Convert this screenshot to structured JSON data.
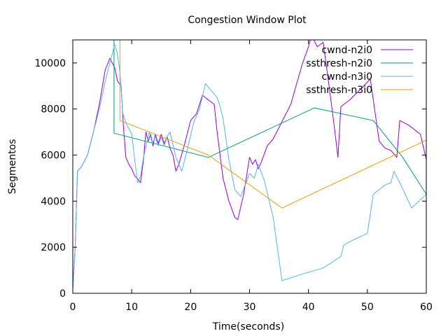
{
  "chart_data": {
    "type": "line",
    "title": "Congestion Window Plot",
    "xlabel": "Time(seconds)",
    "ylabel": "Segmentos",
    "xlim": [
      0,
      60
    ],
    "ylim": [
      0,
      11000
    ],
    "xticks": [
      0,
      10,
      20,
      30,
      40,
      50,
      60
    ],
    "yticks": [
      0,
      2000,
      4000,
      6000,
      8000,
      10000
    ],
    "grid": false,
    "legend_position": "top-right",
    "series": [
      {
        "name": "cwnd-n2i0",
        "color": "#9400d3",
        "points": [
          [
            0,
            200
          ],
          [
            0.4,
            2000
          ],
          [
            0.8,
            5300
          ],
          [
            1.5,
            5500
          ],
          [
            2.5,
            6000
          ],
          [
            3.5,
            7000
          ],
          [
            4.5,
            8200
          ],
          [
            5.5,
            9700
          ],
          [
            6.3,
            10200
          ],
          [
            7.1,
            9800
          ],
          [
            7.6,
            9200
          ],
          [
            8.2,
            9000
          ],
          [
            8.6,
            7200
          ],
          [
            9.0,
            5900
          ],
          [
            9.5,
            5600
          ],
          [
            10.0,
            5400
          ],
          [
            10.5,
            5100
          ],
          [
            11.2,
            4900
          ],
          [
            11.5,
            4800
          ],
          [
            12.0,
            5800
          ],
          [
            12.4,
            7000
          ],
          [
            12.8,
            6600
          ],
          [
            13.2,
            6900
          ],
          [
            13.6,
            6400
          ],
          [
            14.0,
            6900
          ],
          [
            14.5,
            6500
          ],
          [
            15.0,
            6900
          ],
          [
            15.5,
            6500
          ],
          [
            16.0,
            6800
          ],
          [
            16.5,
            6300
          ],
          [
            17.0,
            6000
          ],
          [
            17.5,
            5300
          ],
          [
            18.0,
            5600
          ],
          [
            19.0,
            6500
          ],
          [
            20.0,
            7500
          ],
          [
            21.0,
            7800
          ],
          [
            22.0,
            8600
          ],
          [
            23.0,
            8400
          ],
          [
            24.0,
            8200
          ],
          [
            24.5,
            7000
          ],
          [
            25.5,
            5000
          ],
          [
            26.5,
            4000
          ],
          [
            27.5,
            3300
          ],
          [
            28.0,
            3200
          ],
          [
            29.0,
            4300
          ],
          [
            30.0,
            5900
          ],
          [
            30.5,
            5600
          ],
          [
            31.0,
            5800
          ],
          [
            31.5,
            5400
          ],
          [
            32.0,
            5700
          ],
          [
            33.0,
            6400
          ],
          [
            34.0,
            6700
          ],
          [
            35.0,
            7200
          ],
          [
            36.0,
            7700
          ],
          [
            37.0,
            8200
          ],
          [
            38.0,
            9100
          ],
          [
            39.0,
            10000
          ],
          [
            40.0,
            10700
          ],
          [
            40.5,
            11200
          ],
          [
            41.5,
            10700
          ],
          [
            42.5,
            10900
          ],
          [
            43.5,
            9000
          ],
          [
            44.5,
            7000
          ],
          [
            45.0,
            5900
          ],
          [
            45.5,
            8100
          ],
          [
            47.0,
            8400
          ],
          [
            49.0,
            8900
          ],
          [
            50.5,
            9300
          ],
          [
            52.0,
            6600
          ],
          [
            53.0,
            6300
          ],
          [
            54.0,
            6200
          ],
          [
            55.0,
            5900
          ],
          [
            55.5,
            7500
          ],
          [
            57.0,
            7300
          ],
          [
            59.0,
            6900
          ],
          [
            60.0,
            5800
          ]
        ]
      },
      {
        "name": "ssthresh-n2i0",
        "color": "#009e73",
        "points": [
          [
            7.0,
            11000
          ],
          [
            7.0,
            6950
          ],
          [
            23.0,
            5900
          ],
          [
            41.0,
            8050
          ],
          [
            51.0,
            7500
          ],
          [
            56.0,
            5900
          ],
          [
            60.0,
            4300
          ]
        ]
      },
      {
        "name": "cwnd-n3i0",
        "color": "#56b4e9",
        "points": [
          [
            0,
            200
          ],
          [
            0.4,
            2000
          ],
          [
            0.8,
            5300
          ],
          [
            1.5,
            5500
          ],
          [
            2.5,
            6000
          ],
          [
            3.5,
            7000
          ],
          [
            4.5,
            8000
          ],
          [
            5.5,
            9200
          ],
          [
            6.5,
            10200
          ],
          [
            7.1,
            10800
          ],
          [
            7.5,
            10500
          ],
          [
            8.0,
            9600
          ],
          [
            8.5,
            7800
          ],
          [
            9.0,
            7400
          ],
          [
            10.0,
            6900
          ],
          [
            10.5,
            5800
          ],
          [
            11.0,
            4800
          ],
          [
            11.5,
            5100
          ],
          [
            12.0,
            5900
          ],
          [
            13.0,
            7000
          ],
          [
            13.5,
            6500
          ],
          [
            14.0,
            6800
          ],
          [
            14.5,
            6400
          ],
          [
            15.0,
            6800
          ],
          [
            15.5,
            6400
          ],
          [
            16.0,
            6800
          ],
          [
            16.5,
            7000
          ],
          [
            17.5,
            5900
          ],
          [
            18.5,
            5300
          ],
          [
            19.5,
            6300
          ],
          [
            20.5,
            7400
          ],
          [
            21.5,
            8000
          ],
          [
            22.5,
            9100
          ],
          [
            23.5,
            8800
          ],
          [
            24.5,
            8500
          ],
          [
            25.0,
            8100
          ],
          [
            25.5,
            7600
          ],
          [
            26.5,
            5800
          ],
          [
            27.5,
            4500
          ],
          [
            28.5,
            4200
          ],
          [
            30.0,
            5200
          ],
          [
            30.8,
            5000
          ],
          [
            31.5,
            5600
          ],
          [
            32.5,
            4900
          ],
          [
            34.0,
            3300
          ],
          [
            35.5,
            550
          ],
          [
            38.5,
            800
          ],
          [
            42.5,
            1100
          ],
          [
            45.5,
            1600
          ],
          [
            46.0,
            2100
          ],
          [
            47.5,
            2300
          ],
          [
            50.0,
            2600
          ],
          [
            51.0,
            4300
          ],
          [
            53.0,
            4700
          ],
          [
            54.0,
            4800
          ],
          [
            54.5,
            5300
          ],
          [
            55.5,
            4800
          ],
          [
            57.5,
            3700
          ],
          [
            60.0,
            4300
          ]
        ]
      },
      {
        "name": "ssthresh-n3i0",
        "color": "#e69f00",
        "points": [
          [
            8.0,
            11000
          ],
          [
            8.0,
            7500
          ],
          [
            23.0,
            6000
          ],
          [
            35.5,
            3700
          ],
          [
            60.0,
            6650
          ]
        ]
      }
    ]
  }
}
